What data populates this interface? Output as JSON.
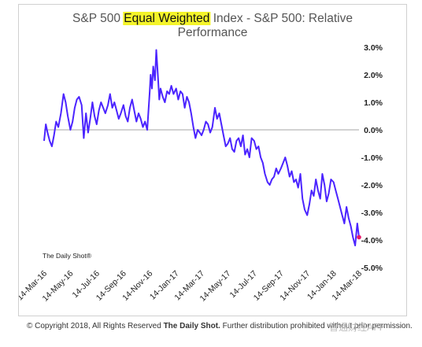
{
  "chart_data": {
    "type": "line",
    "title_parts": [
      "S&P 500 ",
      "Equal Weighted",
      " Index - S&P 500:  Relative"
    ],
    "title_line2": "Performance",
    "highlight_color": "#f4f42a",
    "line_color": "#4b24ff",
    "endpoint_color": "#e8176b",
    "y_ticks": [
      "3.0%",
      "2.0%",
      "1.0%",
      "0.0%",
      "-1.0%",
      "-2.0%",
      "-3.0%",
      "-4.0%",
      "-5.0%"
    ],
    "y_tick_values": [
      3,
      2,
      1,
      0,
      -1,
      -2,
      -3,
      -4,
      -5
    ],
    "ylim": [
      -5,
      3
    ],
    "x_ticks": [
      "14-Mar-16",
      "14-May-16",
      "14-Jul-16",
      "14-Sep-16",
      "14-Nov-16",
      "14-Jan-17",
      "14-Mar-17",
      "14-May-17",
      "14-Jul-17",
      "14-Sep-17",
      "14-Nov-17",
      "14-Jan-18",
      "14-Mar-18"
    ],
    "x_tick_dates": [
      "2016-03-14",
      "2016-05-14",
      "2016-07-14",
      "2016-09-14",
      "2016-11-14",
      "2017-01-14",
      "2017-03-14",
      "2017-05-14",
      "2017-07-14",
      "2017-09-14",
      "2017-11-14",
      "2018-01-14",
      "2018-03-14"
    ],
    "xlim": [
      "2016-03-14",
      "2018-03-14"
    ],
    "source_label": "The Daily Shot®",
    "series": [
      {
        "x": [
          "2016-03-14",
          "2016-03-18",
          "2016-03-22",
          "2016-03-27",
          "2016-04-01",
          "2016-04-06",
          "2016-04-11",
          "2016-04-16",
          "2016-04-22",
          "2016-04-28",
          "2016-05-03",
          "2016-05-08",
          "2016-05-14",
          "2016-05-19",
          "2016-05-24",
          "2016-05-29",
          "2016-06-03",
          "2016-06-09",
          "2016-06-14",
          "2016-06-19",
          "2016-06-24",
          "2016-06-29",
          "2016-07-04",
          "2016-07-09",
          "2016-07-14",
          "2016-07-19",
          "2016-07-24",
          "2016-07-29",
          "2016-08-03",
          "2016-08-09",
          "2016-08-14",
          "2016-08-19",
          "2016-08-24",
          "2016-08-29",
          "2016-09-03",
          "2016-09-08",
          "2016-09-14",
          "2016-09-19",
          "2016-09-24",
          "2016-09-29",
          "2016-10-04",
          "2016-10-09",
          "2016-10-14",
          "2016-10-19",
          "2016-10-24",
          "2016-10-29",
          "2016-11-03",
          "2016-11-08",
          "2016-11-14",
          "2016-11-16",
          "2016-11-19",
          "2016-11-22",
          "2016-11-26",
          "2016-11-29",
          "2016-12-03",
          "2016-12-06",
          "2016-12-09",
          "2016-12-14",
          "2016-12-19",
          "2016-12-24",
          "2016-12-29",
          "2017-01-03",
          "2017-01-08",
          "2017-01-14",
          "2017-01-19",
          "2017-01-24",
          "2017-01-29",
          "2017-02-03",
          "2017-02-08",
          "2017-02-13",
          "2017-02-18",
          "2017-02-23",
          "2017-02-28",
          "2017-03-05",
          "2017-03-10",
          "2017-03-14",
          "2017-03-19",
          "2017-03-24",
          "2017-03-29",
          "2017-04-03",
          "2017-04-08",
          "2017-04-14",
          "2017-04-19",
          "2017-04-24",
          "2017-04-29",
          "2017-05-04",
          "2017-05-09",
          "2017-05-14",
          "2017-05-19",
          "2017-05-24",
          "2017-05-29",
          "2017-06-03",
          "2017-06-08",
          "2017-06-13",
          "2017-06-18",
          "2017-06-23",
          "2017-06-28",
          "2017-07-03",
          "2017-07-08",
          "2017-07-14",
          "2017-07-19",
          "2017-07-24",
          "2017-07-29",
          "2017-08-03",
          "2017-08-08",
          "2017-08-14",
          "2017-08-19",
          "2017-08-24",
          "2017-08-29",
          "2017-09-03",
          "2017-09-08",
          "2017-09-14",
          "2017-09-19",
          "2017-09-24",
          "2017-09-29",
          "2017-10-04",
          "2017-10-09",
          "2017-10-14",
          "2017-10-19",
          "2017-10-24",
          "2017-10-29",
          "2017-11-03",
          "2017-11-08",
          "2017-11-14",
          "2017-11-19",
          "2017-11-24",
          "2017-11-29",
          "2017-12-04",
          "2017-12-09",
          "2017-12-14",
          "2017-12-19",
          "2017-12-24",
          "2017-12-29",
          "2018-01-03",
          "2018-01-08",
          "2018-01-14",
          "2018-01-19",
          "2018-01-24",
          "2018-01-29",
          "2018-02-03",
          "2018-02-08",
          "2018-02-13",
          "2018-02-18",
          "2018-02-23",
          "2018-02-28",
          "2018-03-05",
          "2018-03-10",
          "2018-03-14"
        ],
        "y": [
          -0.4,
          0.2,
          -0.1,
          -0.4,
          -0.6,
          -0.2,
          0.3,
          0.1,
          0.6,
          1.3,
          1.0,
          0.5,
          0.0,
          0.3,
          0.8,
          1.1,
          1.2,
          0.9,
          -0.3,
          0.6,
          -0.1,
          0.4,
          1.0,
          0.5,
          0.2,
          0.7,
          1.0,
          0.8,
          0.6,
          0.9,
          1.3,
          0.8,
          1.0,
          0.7,
          0.4,
          0.6,
          0.9,
          0.5,
          0.3,
          0.8,
          1.1,
          0.7,
          0.3,
          0.6,
          0.4,
          0.1,
          0.3,
          0.0,
          1.4,
          2.0,
          1.5,
          2.3,
          1.8,
          2.9,
          1.9,
          1.1,
          1.5,
          1.2,
          1.0,
          1.4,
          1.3,
          1.6,
          1.3,
          1.5,
          1.1,
          1.4,
          1.3,
          0.8,
          1.2,
          1.0,
          0.6,
          0.1,
          -0.3,
          0.0,
          -0.1,
          -0.2,
          0.0,
          0.3,
          0.2,
          -0.1,
          0.1,
          0.8,
          0.4,
          0.6,
          0.2,
          -0.2,
          -0.6,
          -0.5,
          -0.3,
          -0.7,
          -0.8,
          -0.4,
          -0.3,
          -0.6,
          -0.2,
          -0.9,
          -0.7,
          -1.0,
          -0.3,
          -0.4,
          -0.7,
          -0.6,
          -1.0,
          -1.2,
          -1.6,
          -1.9,
          -2.0,
          -1.8,
          -1.7,
          -1.4,
          -1.6,
          -1.4,
          -1.2,
          -1.0,
          -1.3,
          -1.7,
          -1.5,
          -1.9,
          -1.8,
          -2.1,
          -1.6,
          -2.5,
          -2.9,
          -3.1,
          -2.7,
          -2.2,
          -2.4,
          -1.8,
          -2.2,
          -2.5,
          -1.6,
          -2.0,
          -2.6,
          -2.3,
          -1.8,
          -1.9,
          -2.2,
          -2.5,
          -2.8,
          -3.1,
          -3.4,
          -2.8,
          -3.2,
          -3.5,
          -3.9,
          -4.2,
          -3.4,
          -3.9
        ]
      }
    ]
  },
  "footer": {
    "copyright_prefix": "© Copyright 2018, All Rights Reserved ",
    "copyright_brand": "The Daily Shot.",
    "copyright_suffix": " Further distribution prohibited without prior permission.",
    "watermark": "智通财经APP"
  }
}
